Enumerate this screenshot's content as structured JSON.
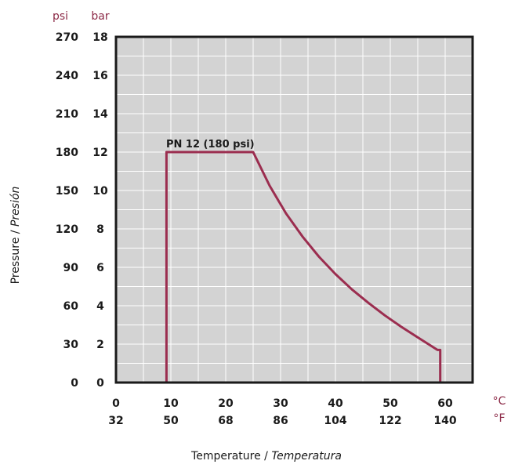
{
  "chart_data": {
    "type": "line",
    "y_units": {
      "left": "psi",
      "right": "bar"
    },
    "x_units": {
      "top": "°C",
      "bottom": "°F"
    },
    "ylabel": {
      "main": "Pressure / ",
      "italic": "Presión"
    },
    "xlabel": {
      "main": "Temperature / ",
      "italic": "Temperatura"
    },
    "yticks_psi": [
      "270",
      "240",
      "210",
      "180",
      "150",
      "120",
      "90",
      "60",
      "30",
      "0"
    ],
    "yticks_bar": [
      "18",
      "16",
      "14",
      "12",
      "10",
      "8",
      "6",
      "4",
      "2",
      "0"
    ],
    "xticks_c": [
      "0",
      "10",
      "20",
      "30",
      "40",
      "50",
      "60"
    ],
    "xticks_f": [
      "32",
      "50",
      "68",
      "86",
      "104",
      "122",
      "140"
    ],
    "xlim": [
      0,
      65
    ],
    "ylim": [
      0,
      18
    ],
    "grid": true,
    "annotation": "PN 12 (180 psi)",
    "series": [
      {
        "x": [
          9.2,
          9.2,
          25,
          28,
          31,
          34,
          37,
          40,
          43,
          46,
          49,
          52,
          55,
          58.6,
          59.1,
          59.1
        ],
        "y": [
          0,
          12,
          12,
          10.25,
          8.8,
          7.6,
          6.55,
          5.65,
          4.85,
          4.15,
          3.5,
          2.9,
          2.35,
          1.7,
          1.7,
          0
        ]
      }
    ],
    "colors": {
      "line": "#9b2d4f",
      "plot_bg": "#d3d3d3",
      "grid": "#ffffff",
      "frame": "#1a1a1a",
      "units": "#8c2a47"
    }
  }
}
